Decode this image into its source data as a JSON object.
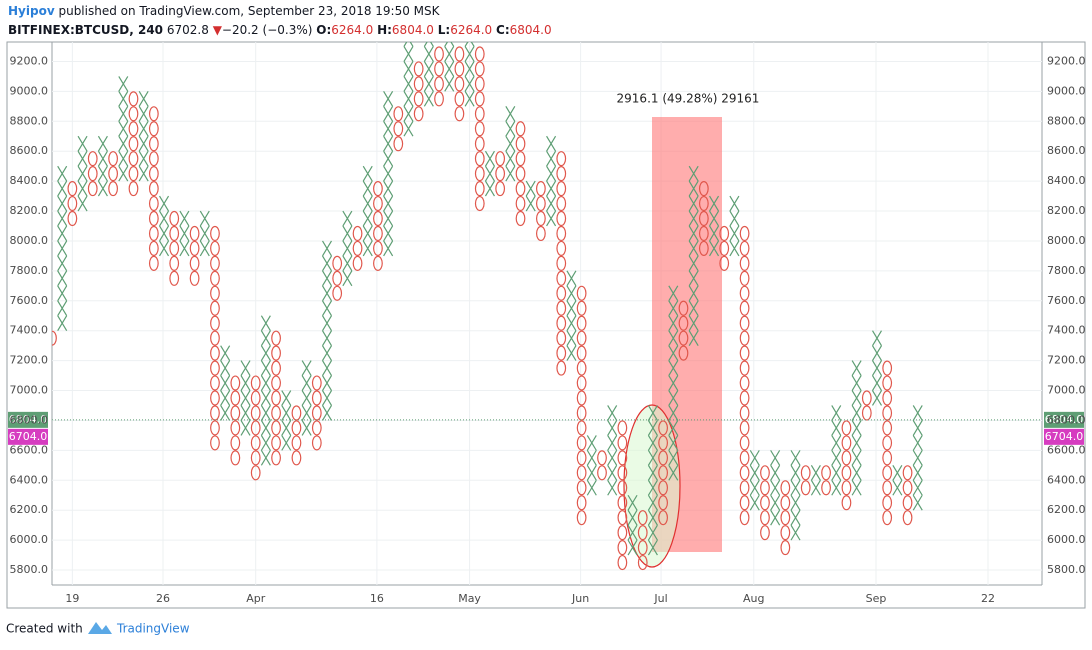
{
  "header": {
    "author": "Hyipov",
    "published": "published on TradingView.com, September 23, 2018 19:50 MSK",
    "symbol": "BITFINEX:BTCUSD, 240",
    "last": "6702.8",
    "arrow": "▼",
    "change": "−20.2 (−0.3%)",
    "ohlc": [
      {
        "label": "O:",
        "value": "6264.0"
      },
      {
        "label": "H:",
        "value": "6804.0"
      },
      {
        "label": "L:",
        "value": "6264.0"
      },
      {
        "label": "C:",
        "value": "6804.0"
      }
    ]
  },
  "chart_data": {
    "type": "pnf",
    "box": 100,
    "x_color": "#5e9e74",
    "o_color": "#e0574c",
    "columns": {
      "kind": [
        "O",
        "X",
        "O",
        "X",
        "O",
        "X",
        "O",
        "X",
        "O",
        "X",
        "O",
        "X",
        "O",
        "X",
        "O",
        "X",
        "O",
        "X",
        "O",
        "X",
        "O",
        "X",
        "O",
        "X",
        "O",
        "X",
        "O",
        "X",
        "O",
        "X",
        "O",
        "X",
        "O",
        "X",
        "O",
        "X",
        "O",
        "X",
        "O",
        "X",
        "O",
        "X",
        "O",
        "X",
        "O",
        "X",
        "O",
        "X",
        "O",
        "X",
        "O",
        "X",
        "O",
        "X",
        "O",
        "X",
        "O",
        "X",
        "O",
        "X",
        "O",
        "X",
        "O",
        "X",
        "O",
        "X",
        "O",
        "X",
        "O",
        "X",
        "O",
        "X",
        "O",
        "X",
        "O",
        "X",
        "O",
        "X",
        "O",
        "X",
        "O",
        "X",
        "O",
        "X",
        "O",
        "X"
      ],
      "low": [
        7300,
        7400,
        8100,
        8200,
        8300,
        8300,
        8300,
        8400,
        8300,
        8400,
        7800,
        7900,
        7700,
        7900,
        7700,
        7900,
        6600,
        6800,
        6500,
        6700,
        6400,
        6500,
        6500,
        6600,
        6500,
        6700,
        6600,
        6800,
        7600,
        7700,
        7800,
        7900,
        7800,
        7900,
        8600,
        8700,
        8800,
        8900,
        8900,
        9000,
        8800,
        8900,
        8200,
        8300,
        8300,
        8400,
        8100,
        8200,
        8000,
        8100,
        7100,
        7200,
        6100,
        6300,
        6400,
        6300,
        5800,
        5900,
        5800,
        5900,
        6100,
        6400,
        7200,
        7300,
        7900,
        7900,
        7800,
        7900,
        6100,
        6200,
        6000,
        6100,
        5900,
        6000,
        6300,
        6300,
        6300,
        6300,
        6200,
        6300,
        6800,
        6900,
        6100,
        6300,
        6100,
        6200
      ],
      "high": [
        7400,
        8500,
        8400,
        8700,
        8600,
        8700,
        8600,
        9100,
        9000,
        9000,
        8900,
        8300,
        8200,
        8200,
        8100,
        8200,
        8100,
        7300,
        7100,
        7200,
        7100,
        7500,
        7400,
        7000,
        6900,
        7200,
        7100,
        8000,
        7900,
        8200,
        8100,
        8500,
        8400,
        9000,
        8900,
        9400,
        9200,
        9400,
        9300,
        9400,
        9300,
        9400,
        9300,
        8600,
        8600,
        8900,
        8800,
        8400,
        8400,
        8700,
        8600,
        7800,
        7700,
        6700,
        6600,
        6900,
        6800,
        6300,
        6200,
        6900,
        6800,
        7700,
        7600,
        8500,
        8400,
        8300,
        8100,
        8300,
        8100,
        6600,
        6500,
        6600,
        6400,
        6600,
        6500,
        6500,
        6500,
        6900,
        6800,
        7200,
        7000,
        7400,
        7200,
        6500,
        6500,
        6900
      ]
    },
    "ylim": [
      5700,
      9330
    ],
    "yticks": [
      {
        "value": 5800,
        "label": "5800.0"
      },
      {
        "value": 6000,
        "label": "6000.0"
      },
      {
        "value": 6200,
        "label": "6200.0"
      },
      {
        "value": 6400,
        "label": "6400.0"
      },
      {
        "value": 6600,
        "label": "6600.0"
      },
      {
        "value": 6800,
        "label": "6800.0"
      },
      {
        "value": 7000,
        "label": "7000.0"
      },
      {
        "value": 7200,
        "label": "7200.0"
      },
      {
        "value": 7400,
        "label": "7400.0"
      },
      {
        "value": 7600,
        "label": "7600.0"
      },
      {
        "value": 7800,
        "label": "7800.0"
      },
      {
        "value": 8000,
        "label": "8000.0"
      },
      {
        "value": 8200,
        "label": "8200.0"
      },
      {
        "value": 8400,
        "label": "8400.0"
      },
      {
        "value": 8600,
        "label": "8600.0"
      },
      {
        "value": 8800,
        "label": "8800.0"
      },
      {
        "value": 9000,
        "label": "9000.0"
      },
      {
        "value": 9200,
        "label": "9200.0"
      }
    ],
    "xlim": [
      0,
      97.2
    ],
    "xticks": [
      {
        "value": 2.0,
        "label": "19"
      },
      {
        "value": 10.9,
        "label": "26"
      },
      {
        "value": 20.0,
        "label": "Apr"
      },
      {
        "value": 31.9,
        "label": "16"
      },
      {
        "value": 41.0,
        "label": "May"
      },
      {
        "value": 51.9,
        "label": "Jun"
      },
      {
        "value": 59.8,
        "label": "Jul"
      },
      {
        "value": 68.9,
        "label": "Aug"
      },
      {
        "value": 80.9,
        "label": "Sep"
      },
      {
        "value": 91.9,
        "label": "22"
      }
    ],
    "grid": true,
    "price_line": {
      "value": 6804,
      "label": "6804.0",
      "color": "#5e9e74"
    },
    "prev_close": {
      "value": 6704,
      "label": "6704.0",
      "color": "#d63cc0"
    },
    "measure_label": "2916.1 (49.28%) 29161"
  },
  "footer": {
    "created": "Created with",
    "brand": "TradingView"
  }
}
